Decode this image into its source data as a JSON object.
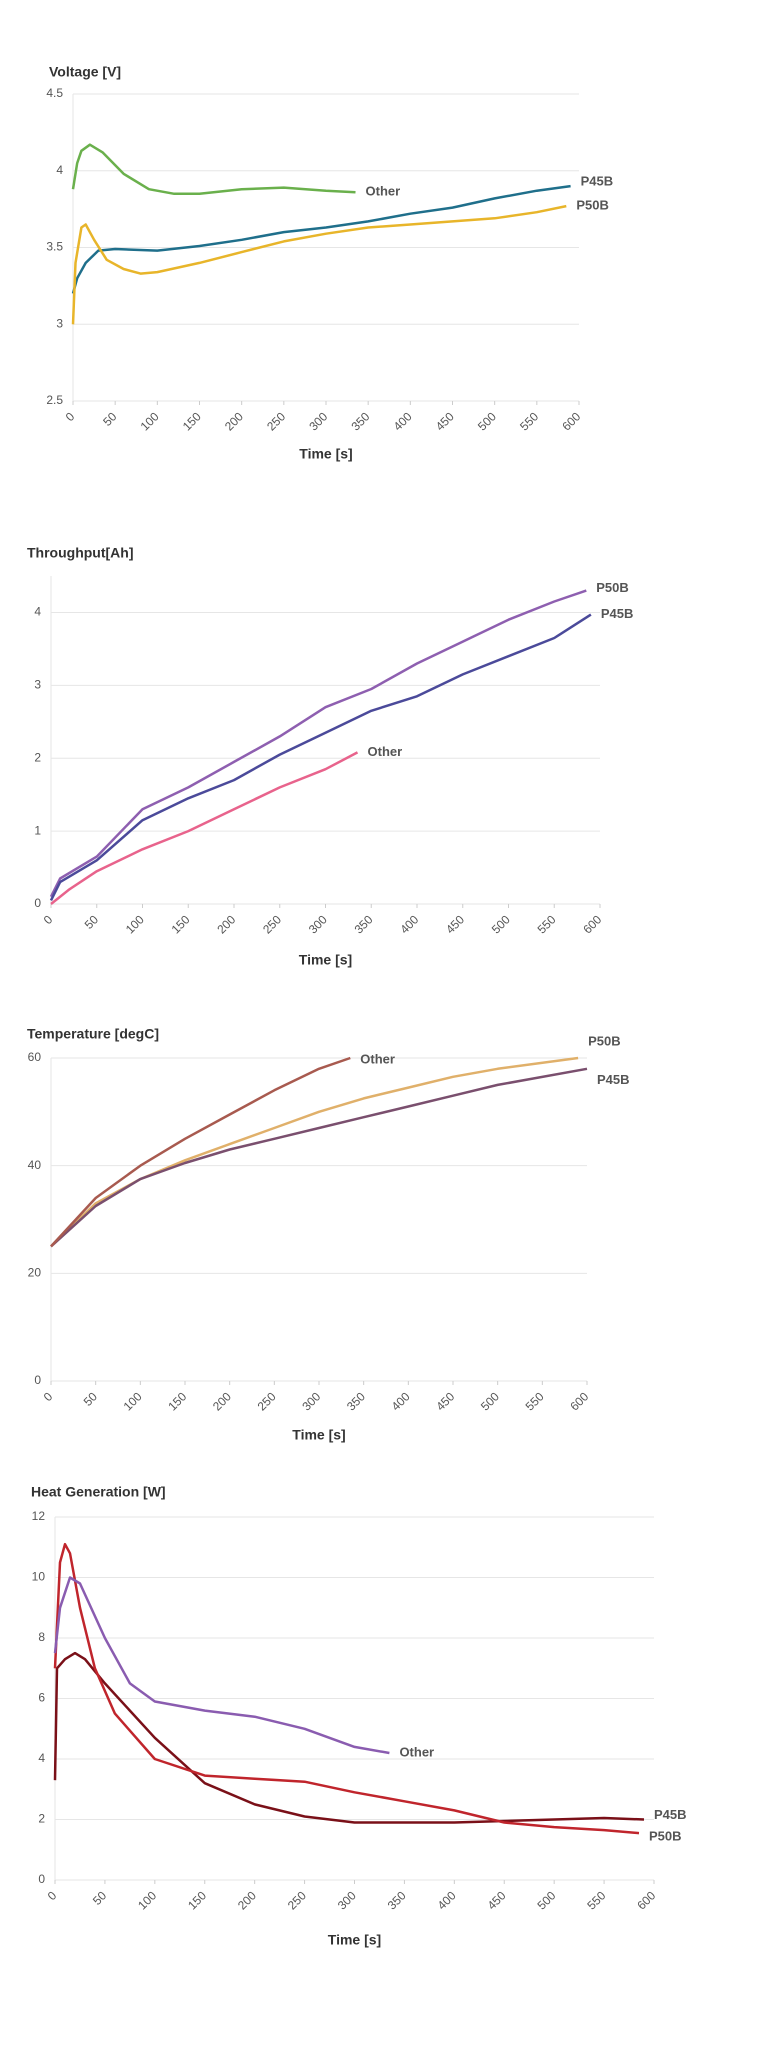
{
  "chart_data": [
    {
      "type": "line",
      "title": "Voltage [V]",
      "x_label": "Time [s]",
      "xlim": [
        0,
        600
      ],
      "xticks": [
        0,
        50,
        100,
        150,
        200,
        250,
        300,
        350,
        400,
        450,
        500,
        550,
        600
      ],
      "ylim": [
        2.5,
        4.5
      ],
      "yticks": [
        2.5,
        3,
        3.5,
        4,
        4.5
      ],
      "grid": true,
      "series": [
        {
          "name": "P45B",
          "color": "#1f6f8b",
          "x": [
            0,
            5,
            15,
            30,
            50,
            100,
            150,
            200,
            250,
            300,
            350,
            400,
            450,
            500,
            550,
            590
          ],
          "values": [
            3.2,
            3.3,
            3.4,
            3.48,
            3.49,
            3.48,
            3.51,
            3.55,
            3.6,
            3.63,
            3.67,
            3.72,
            3.76,
            3.82,
            3.87,
            3.9
          ]
        },
        {
          "name": "P50B",
          "color": "#e8b52a",
          "x": [
            0,
            3,
            10,
            15,
            25,
            40,
            60,
            80,
            100,
            150,
            200,
            250,
            300,
            350,
            400,
            450,
            500,
            550,
            585
          ],
          "values": [
            3.0,
            3.4,
            3.63,
            3.65,
            3.55,
            3.42,
            3.36,
            3.33,
            3.34,
            3.4,
            3.47,
            3.54,
            3.59,
            3.63,
            3.65,
            3.67,
            3.69,
            3.73,
            3.77
          ]
        },
        {
          "name": "Other",
          "color": "#6ab04c",
          "x": [
            0,
            5,
            10,
            20,
            35,
            60,
            90,
            120,
            150,
            200,
            250,
            300,
            335
          ],
          "values": [
            3.88,
            4.05,
            4.13,
            4.17,
            4.12,
            3.98,
            3.88,
            3.85,
            3.85,
            3.88,
            3.89,
            3.87,
            3.86
          ]
        }
      ]
    },
    {
      "type": "line",
      "title": "Throughput[Ah]",
      "x_label": "Time [s]",
      "xlim": [
        0,
        600
      ],
      "xticks": [
        0,
        50,
        100,
        150,
        200,
        250,
        300,
        350,
        400,
        450,
        500,
        550,
        600
      ],
      "ylim": [
        0,
        4.5
      ],
      "yticks": [
        0,
        1,
        2,
        3,
        4
      ],
      "grid": true,
      "series": [
        {
          "name": "P50B",
          "color": "#8e5fb0",
          "x": [
            0,
            10,
            50,
            100,
            150,
            200,
            250,
            300,
            350,
            400,
            450,
            500,
            550,
            585
          ],
          "values": [
            0.1,
            0.35,
            0.65,
            1.3,
            1.6,
            1.95,
            2.3,
            2.7,
            2.95,
            3.3,
            3.6,
            3.9,
            4.15,
            4.3
          ]
        },
        {
          "name": "P45B",
          "color": "#4b4a9a",
          "x": [
            0,
            10,
            50,
            100,
            150,
            200,
            250,
            300,
            350,
            400,
            450,
            500,
            550,
            590
          ],
          "values": [
            0.05,
            0.3,
            0.6,
            1.15,
            1.45,
            1.7,
            2.05,
            2.35,
            2.65,
            2.85,
            3.15,
            3.4,
            3.65,
            3.97
          ]
        },
        {
          "name": "Other",
          "color": "#e8638c",
          "x": [
            0,
            20,
            50,
            100,
            150,
            200,
            250,
            300,
            335
          ],
          "values": [
            0,
            0.2,
            0.45,
            0.75,
            1.0,
            1.3,
            1.6,
            1.85,
            2.08
          ]
        }
      ]
    },
    {
      "type": "line",
      "title": "Temperature [degC]",
      "x_label": "Time [s]",
      "xlim": [
        0,
        600
      ],
      "xticks": [
        0,
        50,
        100,
        150,
        200,
        250,
        300,
        350,
        400,
        450,
        500,
        550,
        600
      ],
      "ylim": [
        0,
        60
      ],
      "yticks": [
        0,
        20,
        40,
        60
      ],
      "grid": true,
      "series": [
        {
          "name": "P50B",
          "color": "#e0b06a",
          "x": [
            0,
            50,
            100,
            150,
            200,
            250,
            300,
            350,
            400,
            450,
            500,
            590
          ],
          "values": [
            25,
            33,
            37.5,
            41,
            44,
            47,
            50,
            52.5,
            54.5,
            56.5,
            58,
            60
          ]
        },
        {
          "name": "P45B",
          "color": "#7a4f6e",
          "x": [
            0,
            50,
            100,
            150,
            200,
            250,
            300,
            350,
            400,
            450,
            500,
            600
          ],
          "values": [
            25,
            32.5,
            37.5,
            40.5,
            43,
            45,
            47,
            49,
            51,
            53,
            55,
            58
          ]
        },
        {
          "name": "Other",
          "color": "#a85a4f",
          "x": [
            0,
            50,
            100,
            150,
            200,
            250,
            300,
            335
          ],
          "values": [
            25,
            34,
            40,
            45,
            49.5,
            54,
            58,
            60
          ]
        }
      ]
    },
    {
      "type": "line",
      "title": "Heat Generation [W]",
      "x_label": "Time [s]",
      "xlim": [
        0,
        600
      ],
      "xticks": [
        0,
        50,
        100,
        150,
        200,
        250,
        300,
        350,
        400,
        450,
        500,
        550,
        600
      ],
      "ylim": [
        0,
        12
      ],
      "yticks": [
        0,
        2,
        4,
        6,
        8,
        10,
        12
      ],
      "grid": true,
      "series": [
        {
          "name": "P45B",
          "color": "#7a1018",
          "x": [
            0,
            2,
            10,
            20,
            30,
            50,
            100,
            150,
            200,
            250,
            300,
            350,
            400,
            450,
            500,
            550,
            590
          ],
          "values": [
            3.3,
            7,
            7.3,
            7.5,
            7.3,
            6.5,
            4.7,
            3.2,
            2.5,
            2.1,
            1.9,
            1.9,
            1.9,
            1.95,
            2.0,
            2.05,
            2.0
          ]
        },
        {
          "name": "P50B",
          "color": "#c0252c",
          "x": [
            0,
            5,
            10,
            15,
            25,
            40,
            60,
            100,
            150,
            200,
            250,
            300,
            350,
            400,
            450,
            500,
            550,
            585
          ],
          "values": [
            7,
            10.5,
            11.1,
            10.8,
            9,
            7,
            5.5,
            4.0,
            3.45,
            3.35,
            3.25,
            2.9,
            2.6,
            2.3,
            1.9,
            1.75,
            1.65,
            1.55
          ]
        },
        {
          "name": "Other",
          "color": "#8a5cb0",
          "x": [
            0,
            5,
            15,
            25,
            50,
            75,
            100,
            150,
            200,
            250,
            300,
            335
          ],
          "values": [
            7.5,
            9,
            10,
            9.8,
            8,
            6.5,
            5.9,
            5.6,
            5.4,
            5.0,
            4.4,
            4.2
          ]
        }
      ]
    }
  ]
}
